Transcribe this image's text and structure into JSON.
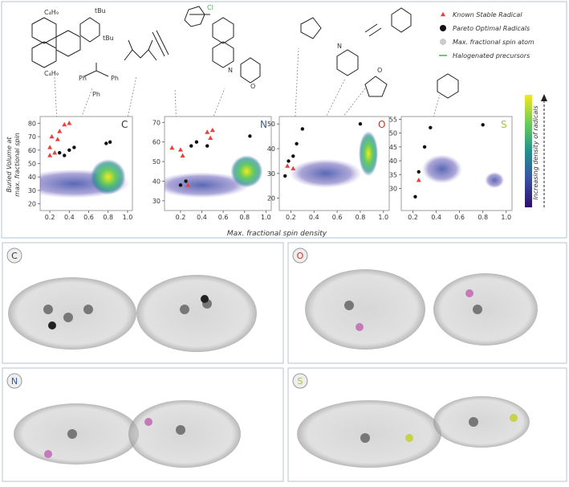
{
  "chart_data": [
    {
      "type": "scatter",
      "panel_label": "C",
      "label_color": "#333333",
      "xlim": [
        0.1,
        1.05
      ],
      "ylim": [
        15,
        85
      ],
      "xticks": [
        0.2,
        0.4,
        0.6,
        0.8,
        {
          "value": 1,
          "label": "1.0"
        }
      ],
      "yticks": [
        20,
        30,
        40,
        50,
        60,
        70,
        80
      ],
      "series": [
        {
          "color": "#e8413c",
          "marker": "triangle",
          "x": [
            0.2,
            0.22,
            0.25,
            0.28,
            0.3,
            0.35,
            0.2,
            0.4
          ],
          "values": [
            62,
            70,
            58,
            68,
            74,
            79,
            56,
            80
          ]
        },
        {
          "color": "#111111",
          "marker": "circle",
          "x": [
            0.3,
            0.35,
            0.4,
            0.45,
            0.78,
            0.82
          ],
          "values": [
            58,
            56,
            60,
            62,
            65,
            66
          ]
        }
      ]
    },
    {
      "type": "scatter",
      "panel_label": "N",
      "label_color": "#3a5ba0",
      "xlim": [
        0.05,
        1.05
      ],
      "ylim": [
        25,
        73
      ],
      "xticks": [
        0.2,
        0.4,
        0.6,
        0.8,
        {
          "value": 1,
          "label": "1.0"
        }
      ],
      "yticks": [
        30,
        40,
        50,
        60,
        70
      ],
      "series": [
        {
          "color": "#e8413c",
          "marker": "triangle",
          "x": [
            0.12,
            0.2,
            0.22,
            0.27,
            0.45,
            0.5,
            0.48
          ],
          "values": [
            57,
            56,
            53,
            38,
            65,
            66,
            62
          ]
        },
        {
          "color": "#111111",
          "marker": "circle",
          "x": [
            0.2,
            0.25,
            0.3,
            0.35,
            0.45,
            0.85
          ],
          "values": [
            38,
            40,
            58,
            60,
            58,
            63
          ]
        }
      ]
    },
    {
      "type": "scatter",
      "panel_label": "O",
      "label_color": "#c0392b",
      "xlim": [
        0.1,
        1.05
      ],
      "ylim": [
        15,
        53
      ],
      "xticks": [
        0.2,
        0.4,
        0.6,
        0.8,
        {
          "value": 1,
          "label": "1.0"
        }
      ],
      "yticks": [
        20,
        30,
        40,
        50
      ],
      "series": [
        {
          "color": "#e8413c",
          "marker": "triangle",
          "x": [
            0.17,
            0.22
          ],
          "values": [
            33,
            32
          ]
        },
        {
          "color": "#111111",
          "marker": "circle",
          "x": [
            0.15,
            0.18,
            0.22,
            0.25,
            0.3,
            0.8
          ],
          "values": [
            29,
            35,
            37,
            42,
            48,
            50
          ]
        }
      ]
    },
    {
      "type": "scatter",
      "panel_label": "S",
      "label_color": "#a8c43a",
      "xlim": [
        0.1,
        1.05
      ],
      "ylim": [
        22,
        56
      ],
      "xticks": [
        0.2,
        0.4,
        0.6,
        0.8,
        {
          "value": 1,
          "label": "1.0"
        }
      ],
      "yticks": [
        30,
        35,
        40,
        45,
        50,
        55
      ],
      "series": [
        {
          "color": "#e8413c",
          "marker": "triangle",
          "x": [
            0.25
          ],
          "values": [
            33
          ]
        },
        {
          "color": "#111111",
          "marker": "circle",
          "x": [
            0.22,
            0.25,
            0.3,
            0.35,
            0.8
          ],
          "values": [
            27,
            36,
            45,
            52,
            53
          ]
        }
      ]
    }
  ],
  "y_label": [
    "Buried Volume at",
    "max. fractional spin"
  ],
  "x_label": "Max. fractional spin density",
  "colorbar_label": "Increasing density of radicals",
  "legend": [
    {
      "label": "Known Stable Radical",
      "color": "#e8413c",
      "marker": "triangle"
    },
    {
      "label": "Pareto Optimal Radicals",
      "color": "#111111",
      "marker": "circle"
    },
    {
      "label": "Max. fractional spin atom",
      "color": "#cccccc",
      "marker": "circle"
    },
    {
      "label": "Halogenated precursors",
      "color": "#4caf50",
      "marker": "line"
    }
  ],
  "structure_labels": [
    "C₄H₉",
    "tBu",
    "tBu",
    "C₄H₉",
    "Ph",
    "Ph",
    "Ph",
    "Cl",
    "N",
    "N",
    "O",
    "O"
  ],
  "panels": [
    {
      "label": "C",
      "color": "#333333"
    },
    {
      "label": "O",
      "color": "#c0392b"
    },
    {
      "label": "N",
      "color": "#3a5ba0"
    },
    {
      "label": "S",
      "color": "#a8c43a"
    }
  ]
}
